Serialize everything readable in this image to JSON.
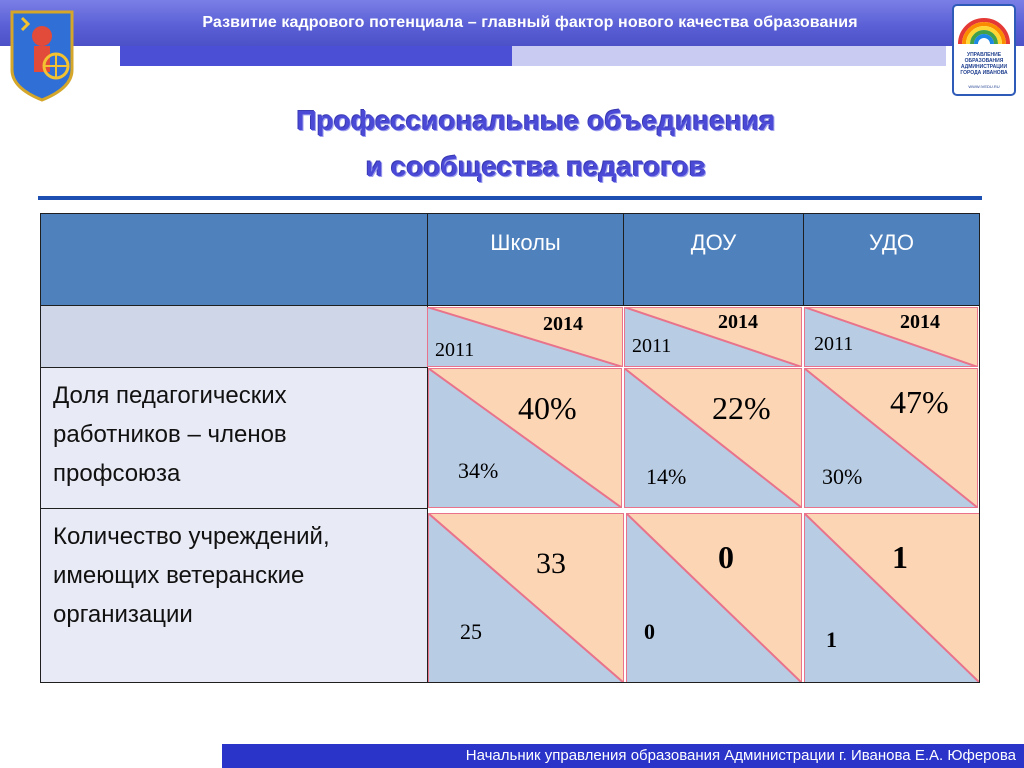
{
  "header": {
    "title": "Развитие кадрового потенциала – главный фактор нового качества образования"
  },
  "logo": {
    "lines": [
      "УПРАВЛЕНИЕ",
      "ОБРАЗОВАНИЯ",
      "АДМИНИСТРАЦИИ",
      "ГОРОДА ИВАНОВА"
    ],
    "url": "WWW.IVEDU.RU"
  },
  "main_title": {
    "line1": "Профессиональные объединения",
    "line2": "и сообщества педагогов"
  },
  "table": {
    "columns": [
      "Школы",
      "ДОУ",
      "УДО"
    ],
    "year_row": [
      {
        "year_left": "2011",
        "year_right": "2014"
      },
      {
        "year_left": "2011",
        "year_right": "2014"
      },
      {
        "year_left": "2011",
        "year_right": "2014"
      }
    ],
    "rows": [
      {
        "label": "Доля педагогических работников – членов профсоюза",
        "cells": [
          {
            "v2011": "34%",
            "v2014": "40%"
          },
          {
            "v2011": "14%",
            "v2014": "22%"
          },
          {
            "v2011": "30%",
            "v2014": "47%"
          }
        ]
      },
      {
        "label": "Количество учреждений, имеющих ветеранские организации",
        "cells": [
          {
            "v2011": "25",
            "v2014": "33"
          },
          {
            "v2011": "0",
            "v2014": "0"
          },
          {
            "v2011": "1",
            "v2014": "1"
          }
        ]
      }
    ]
  },
  "colors": {
    "lower_triangle": "#b8cce4",
    "upper_triangle": "#fcd5b5",
    "triangle_border": "#e8738a",
    "header_fill": "#4f81bd"
  },
  "footer": {
    "text": "Начальник управления образования Администрации  г. Иванова     Е.А. Юферова"
  }
}
